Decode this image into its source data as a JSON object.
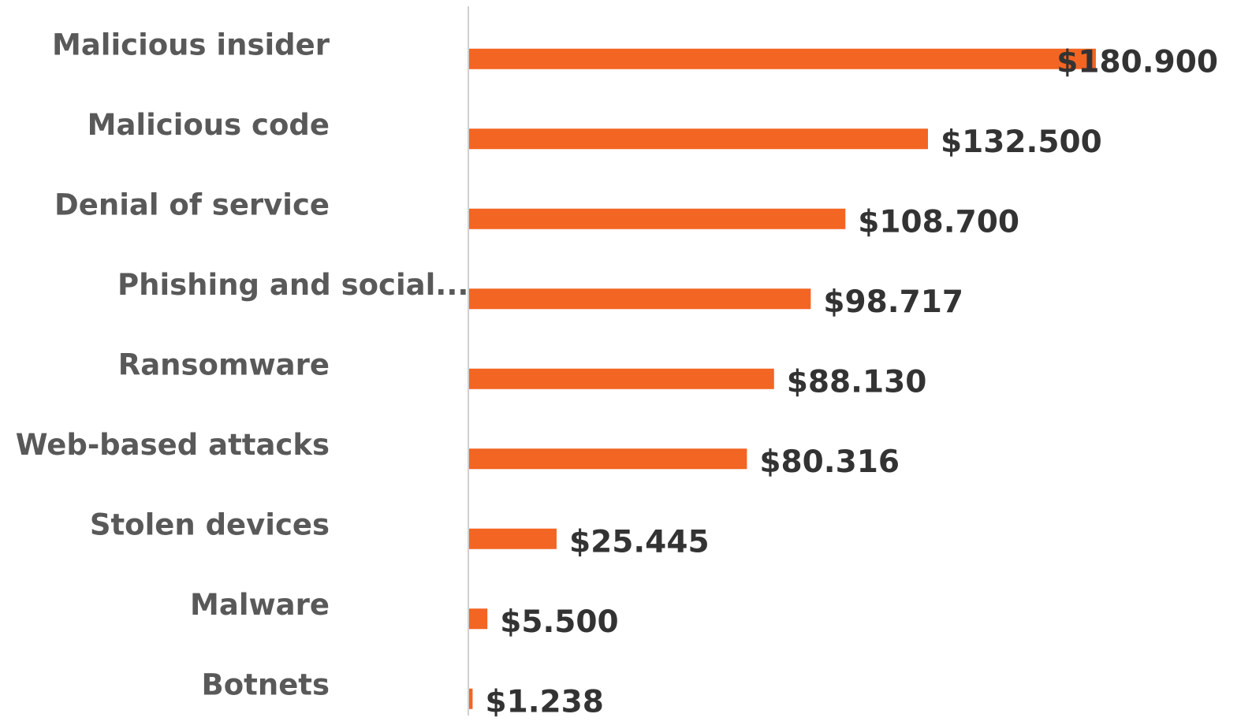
{
  "chart_data": {
    "type": "bar",
    "orientation": "horizontal",
    "categories": [
      "Malicious insider",
      "Malicious code",
      "Denial of service",
      "Phishing and social...",
      "Ransomware",
      "Web-based attacks",
      "Stolen devices",
      "Malware",
      "Botnets"
    ],
    "values": [
      180900,
      132500,
      108700,
      98717,
      88130,
      80316,
      25445,
      5500,
      1238
    ],
    "value_labels": [
      "$180.900",
      "$132.500",
      "$108.700",
      "$98.717",
      "$88.130",
      "$80.316",
      "$25.445",
      "$5.500",
      "$1.238"
    ],
    "color": "#f26522",
    "xlim": [
      0,
      200000
    ]
  }
}
